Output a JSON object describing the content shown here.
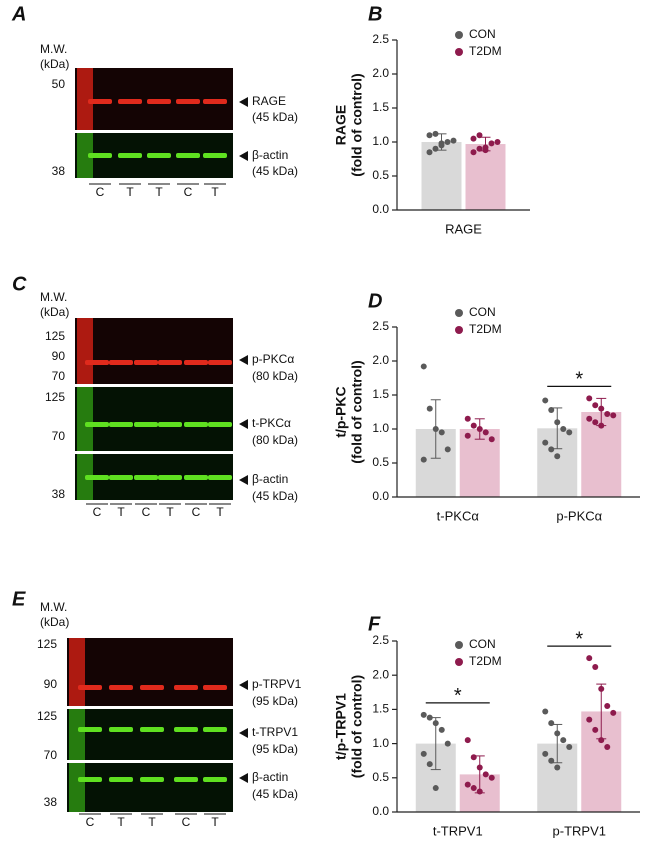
{
  "blots": [
    {
      "letter": "A",
      "mw": "M.W.",
      "unit": "(kDa)",
      "markers": [
        "50",
        "38"
      ],
      "bands": [
        {
          "name": "RAGE",
          "size": "(45 kDa)"
        },
        {
          "name": "β-actin",
          "size": "(45 kDa)"
        }
      ],
      "lanes": [
        "C",
        "T",
        "T",
        "C",
        "T"
      ]
    },
    {
      "letter": "C",
      "mw": "M.W.",
      "unit": "(kDa)",
      "markers": [
        "125",
        "90",
        "70",
        "125",
        "70",
        "38"
      ],
      "bands": [
        {
          "name": "p-PKCα",
          "size": "(80 kDa)"
        },
        {
          "name": "t-PKCα",
          "size": "(80 kDa)"
        },
        {
          "name": "β-actin",
          "size": "(45 kDa)"
        }
      ],
      "lanes": [
        "C",
        "T",
        "C",
        "T",
        "C",
        "T"
      ]
    },
    {
      "letter": "E",
      "mw": "M.W.",
      "unit": "(kDa)",
      "markers": [
        "125",
        "90",
        "125",
        "70",
        "38"
      ],
      "bands": [
        {
          "name": "p-TRPV1",
          "size": "(95 kDa)"
        },
        {
          "name": "t-TRPV1",
          "size": "(95 kDa)"
        },
        {
          "name": "β-actin",
          "size": "(45 kDa)"
        }
      ],
      "lanes": [
        "C",
        "T",
        "T",
        "C",
        "T"
      ]
    }
  ],
  "chart_data": [
    {
      "type": "bar",
      "letter": "B",
      "ylabel": [
        "RAGE",
        "(fold of control)"
      ],
      "categories": [
        "RAGE"
      ],
      "ylim": [
        0,
        2.5
      ],
      "yticks": [
        {
          "value": 0,
          "label": "0.0"
        },
        0.5,
        {
          "value": 1,
          "label": "1.0"
        },
        1.5,
        {
          "value": 2,
          "label": "2.0"
        },
        2.5
      ],
      "significance": [
        null
      ],
      "series": [
        {
          "name": "CON",
          "color": "#d9d9d9",
          "point_color": "#5a5a5a",
          "values": [
            1.0
          ],
          "errors": [
            0.12
          ],
          "points": [
            [
              0.85,
              0.9,
              0.95,
              1.0,
              1.02,
              1.1,
              1.12,
              0.98
            ]
          ]
        },
        {
          "name": "T2DM",
          "color": "#e8bfcf",
          "point_color": "#8e1b4d",
          "values": [
            0.97
          ],
          "errors": [
            0.1
          ],
          "points": [
            [
              0.85,
              0.9,
              0.92,
              0.98,
              1.0,
              1.05,
              1.1,
              0.88
            ]
          ]
        }
      ]
    },
    {
      "type": "bar",
      "letter": "D",
      "ylabel": [
        "t/p-PKC",
        "(fold of control)"
      ],
      "categories": [
        "t-PKCα",
        "p-PKCα"
      ],
      "ylim": [
        0,
        2.5
      ],
      "yticks": [
        {
          "value": 0,
          "label": "0.0"
        },
        0.5,
        {
          "value": 1,
          "label": "1.0"
        },
        1.5,
        {
          "value": 2,
          "label": "2.0"
        },
        2.5
      ],
      "significance": [
        null,
        "*"
      ],
      "series": [
        {
          "name": "CON",
          "color": "#d9d9d9",
          "point_color": "#5a5a5a",
          "values": [
            1.0,
            1.01
          ],
          "errors": [
            0.43,
            0.3
          ],
          "points": [
            [
              1.92,
              1.3,
              1.0,
              0.95,
              0.7,
              0.55
            ],
            [
              1.42,
              1.28,
              1.1,
              1.0,
              0.95,
              0.8,
              0.7,
              0.6
            ]
          ]
        },
        {
          "name": "T2DM",
          "color": "#e8bfcf",
          "point_color": "#8e1b4d",
          "values": [
            1.0,
            1.25
          ],
          "errors": [
            0.15,
            0.2
          ],
          "points": [
            [
              1.15,
              1.05,
              1.0,
              0.95,
              0.85,
              0.9
            ],
            [
              1.45,
              1.35,
              1.3,
              1.22,
              1.2,
              1.15,
              1.1,
              1.05
            ]
          ]
        }
      ]
    },
    {
      "type": "bar",
      "letter": "F",
      "ylabel": [
        "t/p-TRPV1",
        "(fold of control)"
      ],
      "categories": [
        "t-TRPV1",
        "p-TRPV1"
      ],
      "ylim": [
        0,
        2.5
      ],
      "yticks": [
        {
          "value": 0,
          "label": "0.0"
        },
        0.5,
        {
          "value": 1,
          "label": "1.0"
        },
        1.5,
        {
          "value": 2,
          "label": "2.0"
        },
        2.5
      ],
      "significance": [
        "*",
        "*"
      ],
      "series": [
        {
          "name": "CON",
          "color": "#d9d9d9",
          "point_color": "#5a5a5a",
          "values": [
            1.0,
            1.0
          ],
          "errors": [
            0.38,
            0.28
          ],
          "points": [
            [
              1.42,
              1.38,
              1.3,
              1.2,
              1.0,
              0.85,
              0.7,
              0.35
            ],
            [
              1.47,
              1.3,
              1.15,
              1.05,
              0.95,
              0.85,
              0.75,
              0.65
            ]
          ]
        },
        {
          "name": "T2DM",
          "color": "#e8bfcf",
          "point_color": "#8e1b4d",
          "values": [
            0.55,
            1.47
          ],
          "errors": [
            0.27,
            0.4
          ],
          "points": [
            [
              1.05,
              0.8,
              0.65,
              0.55,
              0.5,
              0.4,
              0.35,
              0.3
            ],
            [
              2.25,
              2.12,
              1.8,
              1.55,
              1.45,
              1.35,
              1.2,
              1.05,
              0.95
            ]
          ]
        }
      ]
    }
  ]
}
